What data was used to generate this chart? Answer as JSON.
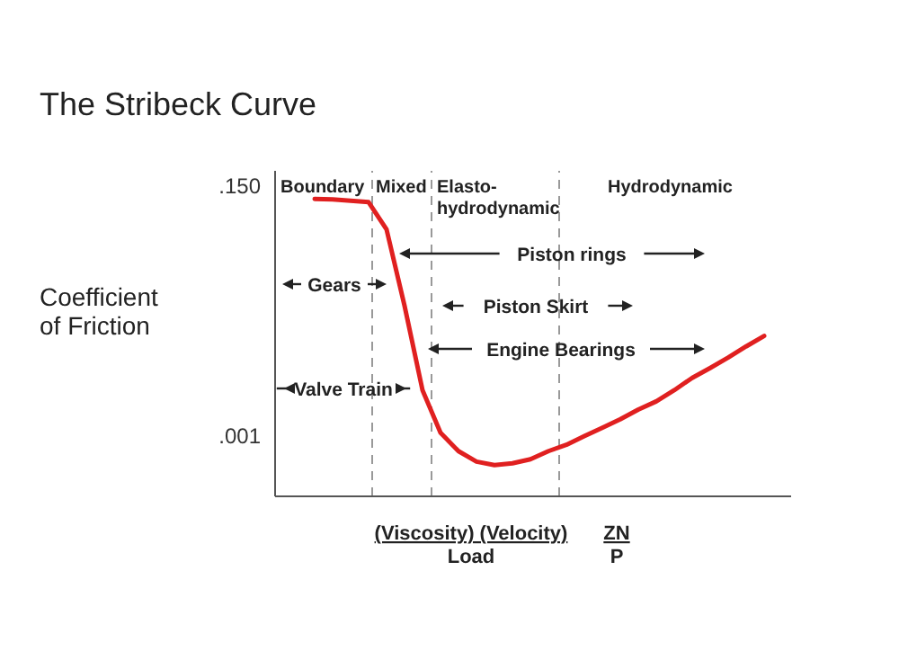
{
  "chart_data": {
    "type": "line",
    "title": "The Stribeck Curve",
    "ylabel": "Coefficient of Friction",
    "xlabel": "(Viscosity) (Velocity)\nLoad",
    "categories": [
      null,
      null,
      null,
      null,
      null,
      null,
      null,
      null,
      null,
      null,
      null,
      null,
      null,
      null,
      null,
      null,
      null,
      null,
      null,
      null,
      null,
      null,
      null,
      null,
      null,
      null
    ],
    "series": [
      {
        "color": "#e02020",
        "values": [
          0.114,
          0.113,
          0.11,
          0.107,
          0.062,
          0.0135,
          0.0025,
          0.00107,
          0.00074,
          0.0006,
          0.00056,
          0.00058,
          0.00063,
          0.00074,
          0.00084,
          0.001,
          0.00118,
          0.0014,
          0.0017,
          0.002,
          0.0025,
          0.0032,
          0.0039,
          0.0048,
          0.006,
          0.0074
        ]
      }
    ],
    "log": "y",
    "ylim": [
      0.0003,
      0.2
    ],
    "yticks": [
      {
        "value": 0.15,
        "label": ".150"
      },
      {
        "value": 0.001,
        "label": ".001"
      }
    ],
    "tick_labels": "y",
    "marker": "none",
    "line_style": "solid",
    "annotations": [
      "Piston rings",
      "Gears",
      "Piston Skirt",
      "Engine Bearings",
      "Valve Train",
      "ZN\nP",
      "Boundary",
      "Mixed",
      "Elasto-\nhydrodynamic",
      "Hydrodynamic"
    ]
  }
}
